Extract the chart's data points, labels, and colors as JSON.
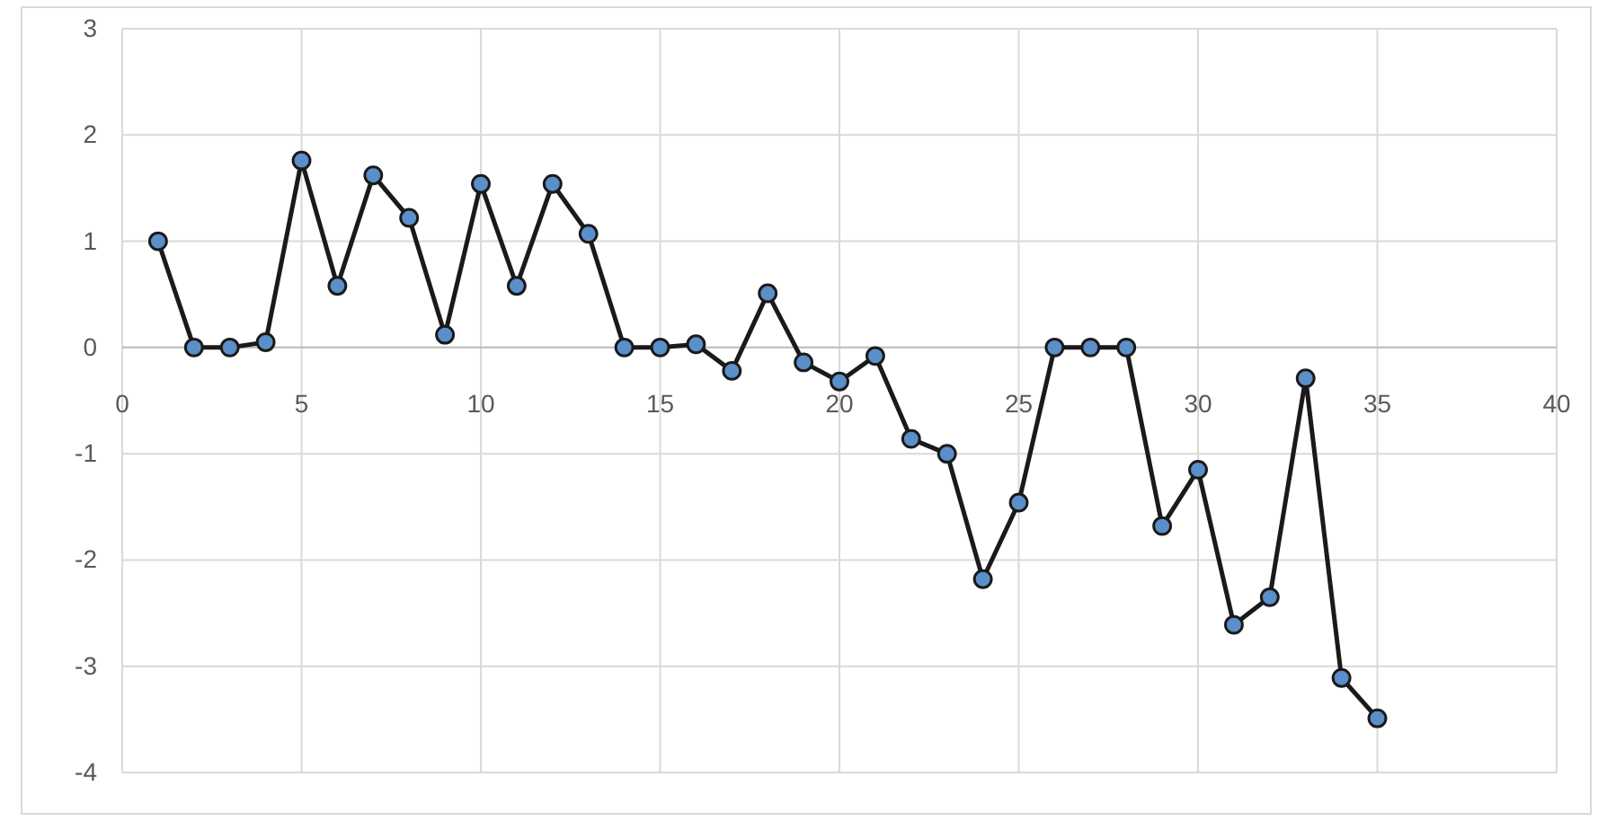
{
  "chart_data": {
    "type": "line",
    "x": [
      1,
      2,
      3,
      4,
      5,
      6,
      7,
      8,
      9,
      10,
      11,
      12,
      13,
      14,
      15,
      16,
      17,
      18,
      19,
      20,
      21,
      22,
      23,
      24,
      25,
      26,
      27,
      28,
      29,
      30,
      31,
      32,
      33,
      34,
      35
    ],
    "series": [
      {
        "color": "#1a1a1a",
        "values": [
          1.0,
          0,
          0,
          0.05,
          1.76,
          0.58,
          1.62,
          1.22,
          0.12,
          1.54,
          0.58,
          1.54,
          1.07,
          0,
          0,
          0.03,
          -0.22,
          0.51,
          -0.14,
          -0.32,
          -0.08,
          -0.86,
          -1.0,
          -2.18,
          -1.46,
          0,
          0,
          0,
          -1.68,
          -1.15,
          -2.61,
          -2.35,
          -0.29,
          -3.11,
          -3.49
        ]
      }
    ],
    "xlim": [
      0,
      40
    ],
    "xticks": [
      0,
      5,
      10,
      15,
      20,
      25,
      30,
      35,
      40
    ],
    "ylim": [
      -4,
      3
    ],
    "yticks": [
      -4,
      -3,
      -2,
      -1,
      0,
      1,
      2,
      3
    ],
    "grid": true,
    "marker": "circle",
    "line_style": "solid"
  }
}
